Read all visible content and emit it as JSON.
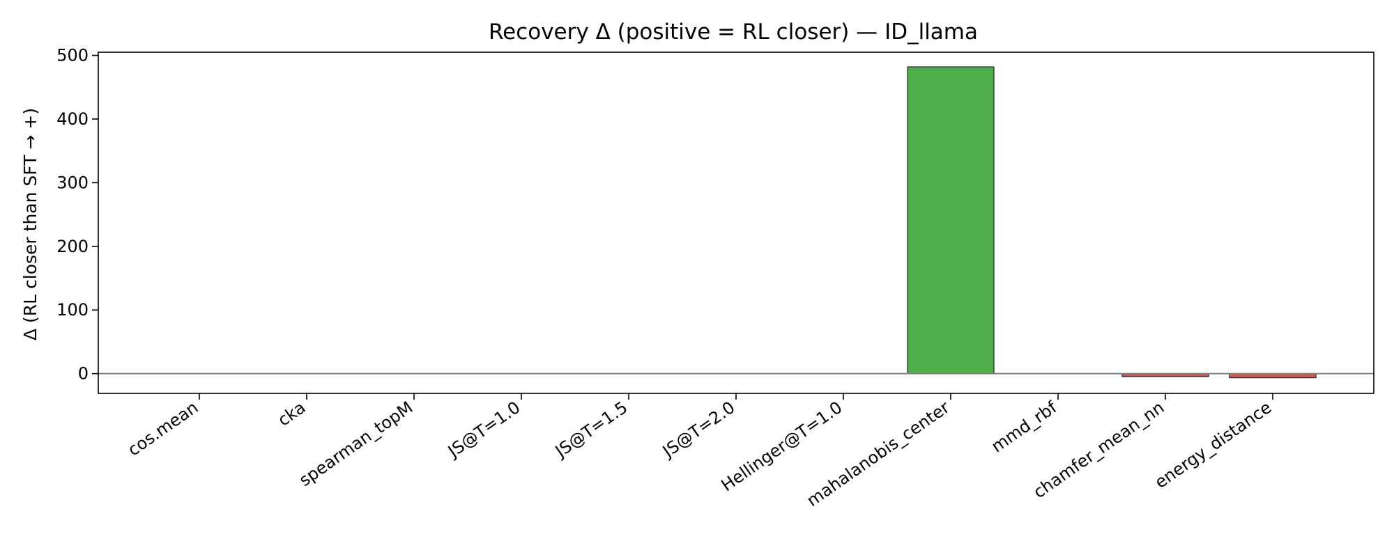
{
  "chart_data": {
    "type": "bar",
    "title": "Recovery Δ (positive = RL closer) — ID_llama",
    "xlabel": "",
    "ylabel": "Δ (RL closer than SFT → +)",
    "categories": [
      "cos.mean",
      "cka",
      "spearman_topM",
      "JS@T=1.0",
      "JS@T=1.5",
      "JS@T=2.0",
      "Hellinger@T=1.0",
      "mahalanobis_center",
      "mmd_rbf",
      "chamfer_mean_nn",
      "energy_distance"
    ],
    "values": [
      0.02,
      0.01,
      0.05,
      0.0,
      0.0,
      0.0,
      0.0,
      482,
      0.0,
      -4.5,
      -6.5
    ],
    "ylim": [
      -31,
      505
    ],
    "yticks": [
      0,
      100,
      200,
      300,
      400,
      500
    ],
    "grid": false,
    "legend": "none",
    "zero_line": true,
    "colors": {
      "positive": "#4daf4a",
      "negative": "#d9534f",
      "edge": "#222222",
      "zero_line": "#808080",
      "axis": "#000000"
    }
  }
}
